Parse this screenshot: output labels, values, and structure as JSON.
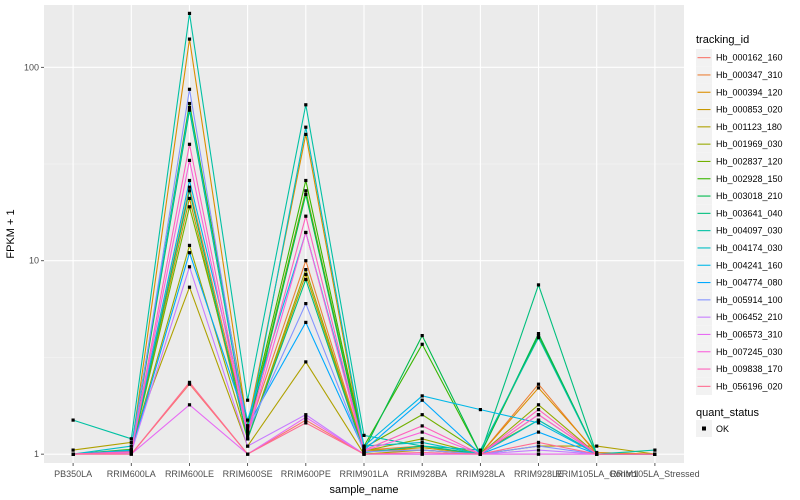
{
  "chart_data": {
    "type": "line",
    "title": "",
    "xlabel": "sample_name",
    "ylabel": "FPKM + 1",
    "y_scale": "log10",
    "ylim": [
      0.9,
      210
    ],
    "y_ticks": [
      1,
      10,
      100
    ],
    "y_tick_labels": [
      "1",
      "10",
      "100"
    ],
    "grid": true,
    "legend_position": "right",
    "categories": [
      "PB350LA",
      "RRIM600LA",
      "RRIM600LE",
      "RRIM600SE",
      "RRIM600PE",
      "RRIM901LA",
      "RRIM928BA",
      "RRIM928LA",
      "RRIM928LE",
      "RRIM105LA_Control",
      "RRIM105LA_Stressed"
    ],
    "legend_title": "tracking_id",
    "shape_legend_title": "quant_status",
    "shape_legend_label": "OK",
    "series": [
      {
        "name": "Hb_000162_160",
        "color": "#F8766D",
        "values": [
          1.0,
          1.0,
          2.3,
          1.0,
          1.5,
          1.0,
          1.0,
          1.0,
          1.0,
          1.0,
          1.0
        ]
      },
      {
        "name": "Hb_000347_310",
        "color": "#EC8239",
        "values": [
          1.0,
          1.02,
          24,
          1.3,
          10,
          1.05,
          1.1,
          1.0,
          2.3,
          1.0,
          1.0
        ]
      },
      {
        "name": "Hb_000394_120",
        "color": "#DB8E00",
        "values": [
          1.0,
          1.05,
          140,
          1.4,
          45,
          1.05,
          1.05,
          1.0,
          2.2,
          1.02,
          1.0
        ]
      },
      {
        "name": "Hb_000853_020",
        "color": "#C79800",
        "values": [
          1.0,
          1.03,
          21,
          1.2,
          8.5,
          1.03,
          1.08,
          1.0,
          1.6,
          1.0,
          1.0
        ]
      },
      {
        "name": "Hb_001123_180",
        "color": "#AFA100",
        "values": [
          1.05,
          1.15,
          7.3,
          1.1,
          3.0,
          1.0,
          1.05,
          1.0,
          1.1,
          1.1,
          1.0
        ]
      },
      {
        "name": "Hb_001969_030",
        "color": "#96A900",
        "values": [
          1.0,
          1.05,
          12,
          1.2,
          9.0,
          1.04,
          1.2,
          1.0,
          1.8,
          1.0,
          1.0
        ]
      },
      {
        "name": "Hb_002837_120",
        "color": "#72B000",
        "values": [
          1.0,
          1.03,
          19,
          1.35,
          23,
          1.08,
          1.6,
          1.02,
          1.5,
          1.0,
          1.0
        ]
      },
      {
        "name": "Hb_002928_150",
        "color": "#39B600",
        "values": [
          1.0,
          1.06,
          65,
          1.4,
          26,
          1.1,
          3.7,
          1.0,
          4.1,
          1.0,
          1.0
        ]
      },
      {
        "name": "Hb_003018_210",
        "color": "#00BB4E",
        "values": [
          1.0,
          1.04,
          60,
          1.3,
          22,
          1.05,
          4.1,
          1.0,
          4.2,
          1.0,
          1.0
        ]
      },
      {
        "name": "Hb_003641_040",
        "color": "#00BF7D",
        "values": [
          1.0,
          1.02,
          23,
          1.2,
          8.0,
          1.02,
          1.1,
          1.0,
          7.5,
          1.0,
          1.0
        ]
      },
      {
        "name": "Hb_004097_030",
        "color": "#00C1A3",
        "values": [
          1.5,
          1.2,
          190,
          1.9,
          64,
          1.25,
          1.1,
          1.05,
          4.0,
          1.0,
          1.05
        ]
      },
      {
        "name": "Hb_004174_030",
        "color": "#00BFC4",
        "values": [
          1.0,
          1.1,
          62,
          1.3,
          49,
          1.1,
          1.15,
          1.0,
          1.5,
          1.0,
          1.0
        ]
      },
      {
        "name": "Hb_004241_160",
        "color": "#00B8E7",
        "values": [
          1.0,
          1.05,
          26,
          1.5,
          14,
          1.1,
          2.0,
          1.7,
          1.45,
          1.0,
          1.0
        ]
      },
      {
        "name": "Hb_004774_080",
        "color": "#00A9FF",
        "values": [
          1.0,
          1.03,
          11,
          1.4,
          4.8,
          1.05,
          1.9,
          1.0,
          1.3,
          1.0,
          1.0
        ]
      },
      {
        "name": "Hb_005914_100",
        "color": "#8494FF",
        "values": [
          1.0,
          1.02,
          77,
          1.3,
          6.0,
          1.03,
          1.05,
          1.0,
          1.1,
          1.0,
          1.0
        ]
      },
      {
        "name": "Hb_006452_210",
        "color": "#C77CFF",
        "values": [
          1.0,
          1.02,
          9.3,
          1.1,
          1.6,
          1.0,
          1.0,
          1.0,
          1.05,
          1.0,
          1.0
        ]
      },
      {
        "name": "Hb_006573_310",
        "color": "#E76BF3",
        "values": [
          1.0,
          1.0,
          1.8,
          1.0,
          1.55,
          1.0,
          1.0,
          1.0,
          1.0,
          1.0,
          1.0
        ]
      },
      {
        "name": "Hb_007245_030",
        "color": "#FA62DB",
        "values": [
          1.0,
          1.02,
          33,
          1.25,
          14,
          1.04,
          1.3,
          1.0,
          1.6,
          1.0,
          1.0
        ]
      },
      {
        "name": "Hb_009838_170",
        "color": "#FF62BC",
        "values": [
          1.0,
          1.03,
          40,
          1.3,
          17,
          1.05,
          1.4,
          1.0,
          1.7,
          1.0,
          1.0
        ]
      },
      {
        "name": "Hb_056196_020",
        "color": "#FF6C91",
        "values": [
          1.0,
          1.0,
          2.35,
          1.0,
          1.45,
          1.0,
          1.02,
          1.0,
          1.15,
          1.0,
          1.0
        ]
      }
    ]
  }
}
